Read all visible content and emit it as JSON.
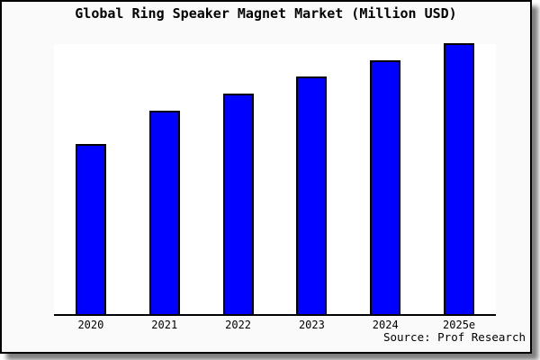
{
  "chart_data": {
    "type": "bar",
    "title": "Global Ring Speaker Magnet Market (Million USD)",
    "categories": [
      "2020",
      "2021",
      "2022",
      "2023",
      "2024",
      "2025e"
    ],
    "values": [
      189,
      226,
      245,
      264,
      282,
      301
    ],
    "value_note": "no numeric y-axis displayed; values are relative bar heights",
    "xlabel": "",
    "ylabel": "",
    "grid": false,
    "legend": null,
    "bar_fill_color": "#0000ff",
    "bar_border_color": "#000000",
    "frame_background": "#fafafa",
    "plot_background": "#ffffff",
    "source": "Source: Prof Research"
  }
}
